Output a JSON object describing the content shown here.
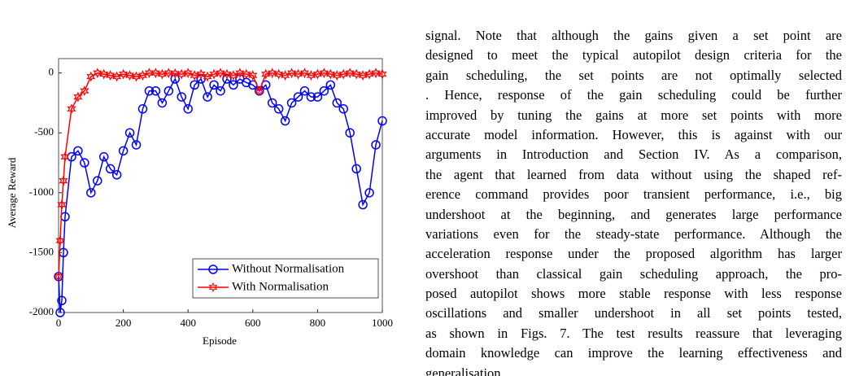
{
  "chart_data": {
    "type": "line",
    "xlabel": "Episode",
    "ylabel": "Average Reward",
    "xlim": [
      0,
      1000
    ],
    "ylim": [
      -2000,
      120
    ],
    "xticks": [
      0,
      200,
      400,
      600,
      800,
      1000
    ],
    "yticks": [
      -2000,
      -1500,
      -1000,
      -500,
      0
    ],
    "legend": "lower right",
    "x": [
      0,
      5,
      10,
      15,
      20,
      40,
      60,
      80,
      100,
      120,
      140,
      160,
      180,
      200,
      220,
      240,
      260,
      280,
      300,
      320,
      340,
      360,
      380,
      400,
      420,
      440,
      460,
      480,
      500,
      520,
      540,
      560,
      580,
      600,
      620,
      640,
      660,
      680,
      700,
      720,
      740,
      760,
      780,
      800,
      820,
      840,
      860,
      880,
      900,
      920,
      940,
      960,
      980,
      1000
    ],
    "series": [
      {
        "name": "Without Normalisation",
        "color": "#0000ff",
        "marker": "circle",
        "values": [
          -1700,
          -2000,
          -1900,
          -1500,
          -1200,
          -700,
          -650,
          -750,
          -1000,
          -900,
          -700,
          -800,
          -850,
          -650,
          -500,
          -600,
          -300,
          -150,
          -150,
          -250,
          -150,
          -50,
          -200,
          -300,
          -100,
          -50,
          -200,
          -100,
          -150,
          -50,
          -100,
          -50,
          -80,
          -100,
          -150,
          -100,
          -250,
          -300,
          -400,
          -250,
          -200,
          -150,
          -200,
          -200,
          -150,
          -100,
          -250,
          -300,
          -500,
          -800,
          -1100,
          -1000,
          -600,
          -400
        ]
      },
      {
        "name": "With Normalisation",
        "color": "#ff0000",
        "marker": "star",
        "values": [
          -1700,
          -1400,
          -1100,
          -900,
          -700,
          -300,
          -200,
          -150,
          -30,
          0,
          -10,
          -20,
          -30,
          -10,
          -20,
          -30,
          -20,
          0,
          0,
          -10,
          0,
          -5,
          -10,
          0,
          -20,
          -10,
          -30,
          -10,
          0,
          -10,
          -20,
          0,
          -10,
          -20,
          -150,
          -10,
          0,
          -10,
          -20,
          0,
          -10,
          0,
          -20,
          -10,
          0,
          -10,
          -20,
          -10,
          0,
          -10,
          -20,
          -10,
          0,
          -10
        ]
      }
    ]
  },
  "body": {
    "lines": [
      "signal. Note that although the gains given a set point are",
      "designed to meet the typical autopilot design criteria for the",
      "gain scheduling, the set points are not optimally selected",
      ". Hence, response of the gain scheduling could be further",
      "improved by tuning the gains at more set points with more",
      "accurate model information. However, this is against with our",
      "arguments in Introduction and Section IV. As a comparison,",
      "the agent that learned from data without using the shaped ref-",
      "erence command provides poor transient performance, i.e., big",
      "undershoot at the beginning, and generates large performance",
      "variations even for the steady-state performance. Although the",
      "acceleration response under the proposed algorithm has larger",
      "overshoot than classical gain scheduling approach, the pro-",
      "posed autopilot shows more stable response with less response",
      "oscillations and smaller undershoot in all set points tested,",
      "as shown in Figs. 7. The test results reassure that leveraging",
      "domain knowledge can improve the learning effectiveness and",
      "generalisation."
    ]
  }
}
